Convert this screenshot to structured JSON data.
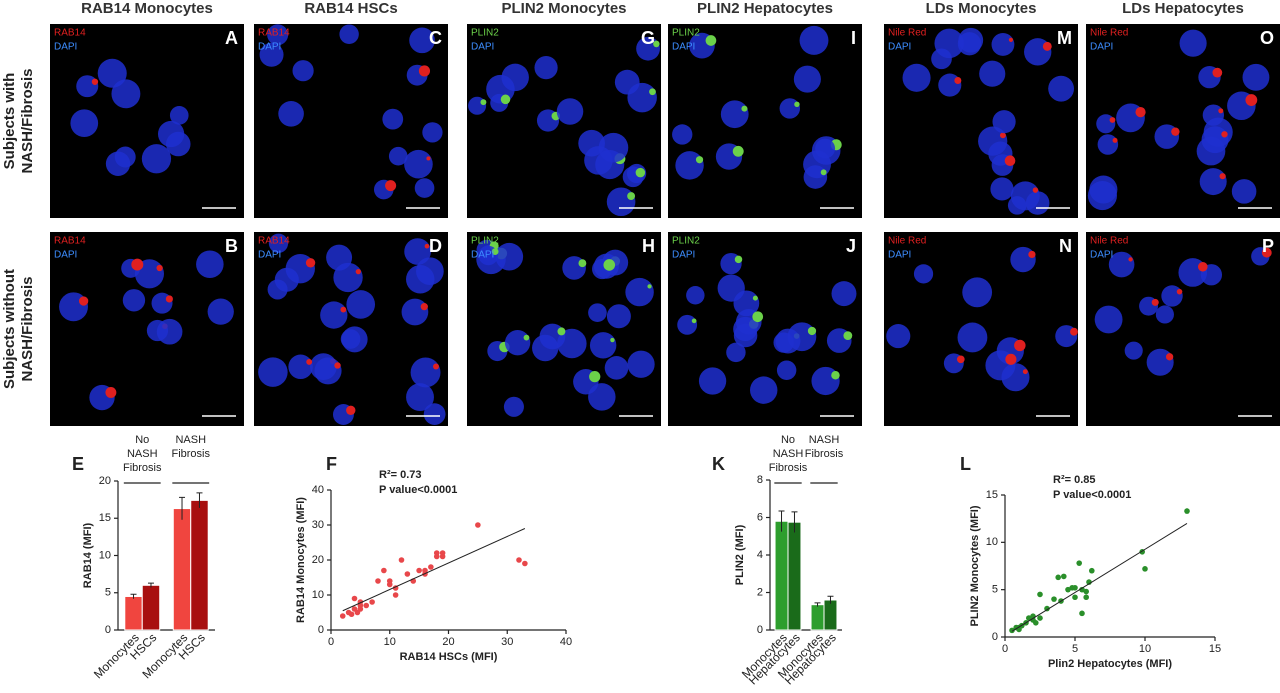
{
  "panels": {
    "rows": [
      [
        "Subjects with",
        "NASH/Fibrosis"
      ],
      [
        "Subjects without",
        "NASH/Fibrosis"
      ]
    ],
    "columns": [
      {
        "title": "RAB14 Monocytes",
        "images": [
          {
            "letter": "A",
            "stain": "RAB14",
            "stain_color": "#e02020",
            "dapi": "DAPI"
          },
          {
            "letter": "B",
            "stain": "RAB14",
            "stain_color": "#e02020",
            "dapi": "DAPI"
          }
        ]
      },
      {
        "title": "RAB14 HSCs",
        "images": [
          {
            "letter": "C",
            "stain": "RAB14",
            "stain_color": "#e02020",
            "dapi": "DAPI"
          },
          {
            "letter": "D",
            "stain": "RAB14",
            "stain_color": "#e02020",
            "dapi": "DAPI"
          }
        ]
      },
      {
        "title": "PLIN2 Monocytes",
        "images": [
          {
            "letter": "G",
            "stain": "PLIN2",
            "stain_color": "#6bd14a",
            "dapi": "DAPI"
          },
          {
            "letter": "H",
            "stain": "PLIN2",
            "stain_color": "#6bd14a",
            "dapi": "DAPI"
          }
        ]
      },
      {
        "title": "PLIN2 Hepatocytes",
        "images": [
          {
            "letter": "I",
            "stain": "PLIN2",
            "stain_color": "#6bd14a",
            "dapi": "DAPI"
          },
          {
            "letter": "J",
            "stain": "PLIN2",
            "stain_color": "#6bd14a",
            "dapi": "DAPI"
          }
        ]
      },
      {
        "title": "LDs Monocytes",
        "images": [
          {
            "letter": "M",
            "stain": "Nile Red",
            "stain_color": "#e02020",
            "dapi": "DAPI"
          },
          {
            "letter": "N",
            "stain": "Nile Red",
            "stain_color": "#e02020",
            "dapi": "DAPI"
          }
        ]
      },
      {
        "title": "LDs Hepatocytes",
        "images": [
          {
            "letter": "O",
            "stain": "Nile Red",
            "stain_color": "#e02020",
            "dapi": "DAPI"
          },
          {
            "letter": "P",
            "stain": "Nile Red",
            "stain_color": "#e02020",
            "dapi": "DAPI"
          }
        ]
      }
    ]
  },
  "chart_data": [
    {
      "type": "bar",
      "label": "E",
      "y_label": "RAB14 (MFI)",
      "groups": [
        "No NASH Fibrosis",
        "NASH Fibrosis"
      ],
      "categories": [
        "Monocytes",
        "HSCs",
        "Monocytes",
        "HSCs"
      ],
      "values": [
        4.5,
        6.0,
        16.3,
        17.4
      ],
      "errors": [
        0.3,
        0.3,
        1.5,
        1.0
      ],
      "colors": [
        "#f0453f",
        "#a80f0f",
        "#f0453f",
        "#a80f0f"
      ],
      "ylim": [
        0,
        20
      ],
      "yticks": [
        0,
        5,
        10,
        15,
        20
      ]
    },
    {
      "type": "scatter",
      "label": "F",
      "x_label": "RAB14 HSCs (MFI)",
      "y_label": "RAB14 Monocytes (MFI)",
      "annotations": [
        "R²= 0.73",
        "P value<0.0001"
      ],
      "color": "#e8474a",
      "x": [
        2,
        3,
        3.5,
        4,
        4,
        4.5,
        5,
        5,
        5,
        6,
        7,
        8,
        9,
        10,
        10,
        11,
        11,
        12,
        13,
        14,
        15,
        16,
        16,
        17,
        18,
        18,
        19,
        19,
        25,
        32,
        33
      ],
      "y": [
        4,
        5,
        4.5,
        6,
        9,
        5,
        6,
        8,
        7,
        7,
        8,
        14,
        17,
        13,
        14,
        10,
        12,
        20,
        16,
        14,
        17,
        17,
        16,
        18,
        22,
        21,
        22,
        21,
        30,
        20,
        19
      ],
      "fit": {
        "x": [
          2,
          33
        ],
        "y": [
          5.5,
          29
        ]
      },
      "xlim": [
        0,
        40
      ],
      "ylim": [
        0,
        40
      ],
      "xticks": [
        0,
        10,
        20,
        30,
        40
      ],
      "yticks": [
        0,
        10,
        20,
        30,
        40
      ]
    },
    {
      "type": "bar",
      "label": "K",
      "y_label": "PLIN2 (MFI)",
      "groups": [
        "No NASH Fibrosis",
        "NASH Fibrosis"
      ],
      "categories": [
        "Monocytes",
        "Hepatocytes",
        "Monocytes",
        "Hepatocytes"
      ],
      "values": [
        5.8,
        5.75,
        1.35,
        1.6
      ],
      "errors": [
        0.55,
        0.55,
        0.1,
        0.2
      ],
      "colors": [
        "#2d9e2d",
        "#1a6b1a",
        "#2d9e2d",
        "#1a6b1a"
      ],
      "ylim": [
        0,
        8
      ],
      "yticks": [
        0,
        2,
        4,
        6,
        8
      ]
    },
    {
      "type": "scatter",
      "label": "L",
      "x_label": "Plin2 Hepatocytes (MFI)",
      "y_label": "PLIN2 Monocytes (MFI)",
      "annotations": [
        "R²= 0.85",
        "P value<0.0001"
      ],
      "color": "#2a8f2a",
      "x": [
        0.5,
        0.8,
        1,
        1,
        1.2,
        1.5,
        1.7,
        2,
        2,
        2.2,
        2.5,
        2.5,
        3,
        3.5,
        3.8,
        4,
        4.5,
        4.8,
        5,
        5,
        5.3,
        5.5,
        5.5,
        5.8,
        6,
        6.2,
        9.8,
        10,
        13,
        4.2,
        5.8
      ],
      "y": [
        0.7,
        1,
        0.8,
        1,
        1.2,
        1.5,
        2,
        1.8,
        2.2,
        1.5,
        2,
        4.5,
        3,
        4,
        6.3,
        3.8,
        5,
        5.2,
        5.2,
        4.2,
        7.8,
        5,
        2.5,
        4.8,
        5.8,
        7,
        9,
        7.2,
        13.3,
        6.4,
        4.2
      ],
      "fit": {
        "x": [
          0.5,
          13
        ],
        "y": [
          0.6,
          12
        ]
      },
      "xlim": [
        0,
        15
      ],
      "ylim": [
        0,
        15
      ],
      "xticks": [
        0,
        5,
        10,
        15
      ],
      "yticks": [
        0,
        5,
        10,
        15
      ]
    }
  ]
}
